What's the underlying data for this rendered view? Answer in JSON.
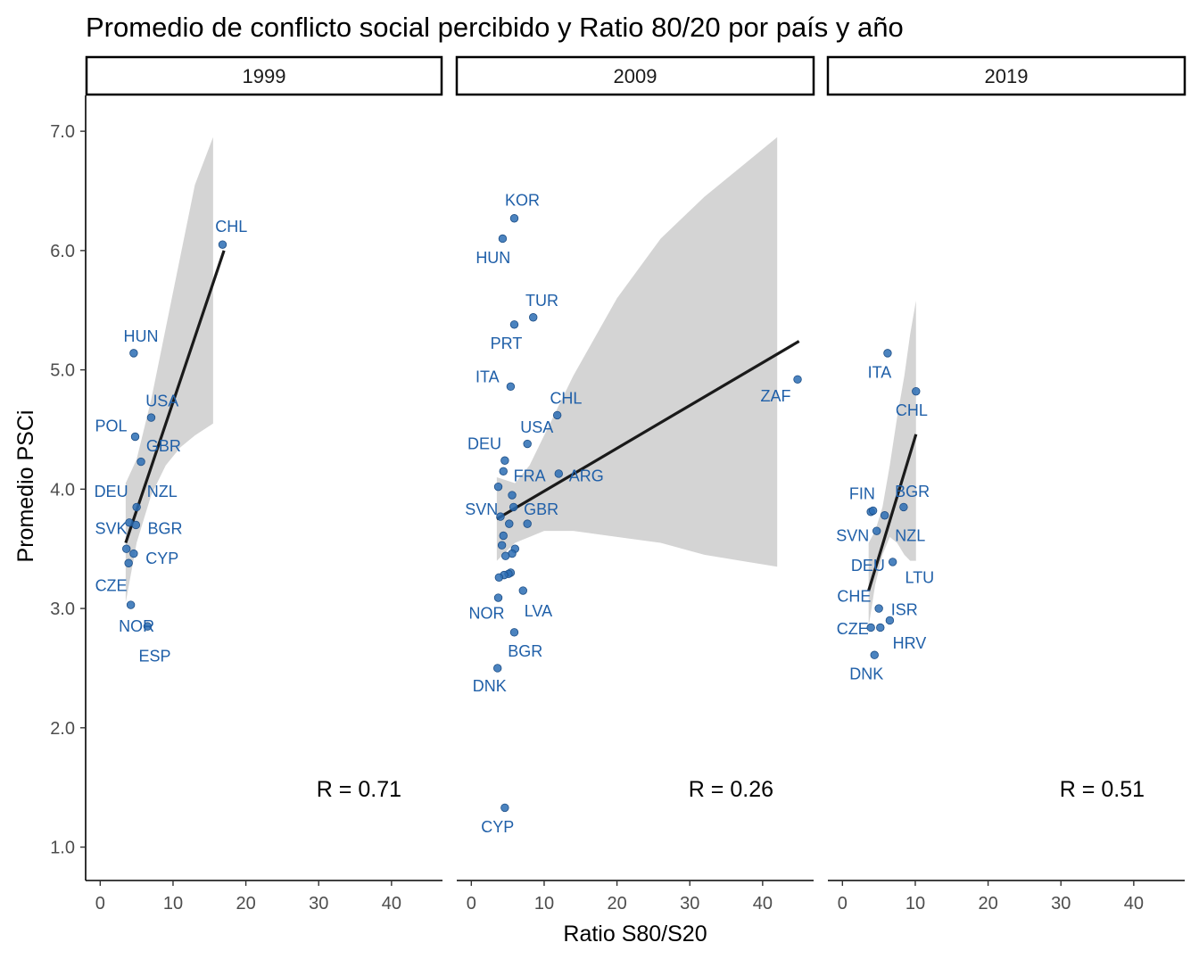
{
  "chart_data": {
    "type": "scatter",
    "title": "Promedio de conflicto social percibido y Ratio 80/20 por país y año",
    "xlabel": "Ratio S80/S20",
    "ylabel": "Promedio PSCi",
    "xlim": [
      -2,
      47
    ],
    "ylim": [
      0.72,
      7.3
    ],
    "x_ticks": [
      0,
      10,
      20,
      30,
      40
    ],
    "y_ticks": [
      1.0,
      2.0,
      3.0,
      4.0,
      5.0,
      6.0,
      7.0
    ],
    "x_tick_labels": [
      "0",
      "10",
      "20",
      "30",
      "40"
    ],
    "y_tick_labels": [
      "1.0",
      "2.0",
      "3.0",
      "4.0",
      "5.0",
      "6.0",
      "7.0"
    ],
    "grid": false,
    "point_color": "#2c6db4",
    "label_color": "#1f5fa8",
    "fit_color": "#1a1a1a",
    "band_color": "#d4d4d4",
    "panels": [
      {
        "facet": "1999",
        "r_label": "R = 0.71",
        "fit": {
          "x0": 3.5,
          "y0": 3.55,
          "x1": 17,
          "y1": 6.0
        },
        "band": [
          {
            "x": 3.5,
            "lo": 3.05,
            "hi": 4.05
          },
          {
            "x": 5,
            "lo": 3.55,
            "hi": 4.25
          },
          {
            "x": 7,
            "lo": 3.95,
            "hi": 4.75
          },
          {
            "x": 9,
            "lo": 4.2,
            "hi": 5.35
          },
          {
            "x": 11,
            "lo": 4.35,
            "hi": 5.95
          },
          {
            "x": 13,
            "lo": 4.45,
            "hi": 6.55
          },
          {
            "x": 15.5,
            "lo": 4.55,
            "hi": 6.95
          }
        ],
        "points": [
          {
            "x": 16.8,
            "y": 6.05
          },
          {
            "x": 4.6,
            "y": 5.14
          },
          {
            "x": 7.0,
            "y": 4.6
          },
          {
            "x": 4.8,
            "y": 4.44
          },
          {
            "x": 5.6,
            "y": 4.23
          },
          {
            "x": 5.0,
            "y": 3.85
          },
          {
            "x": 4.0,
            "y": 3.72
          },
          {
            "x": 4.9,
            "y": 3.7
          },
          {
            "x": 3.6,
            "y": 3.5
          },
          {
            "x": 4.6,
            "y": 3.46
          },
          {
            "x": 3.9,
            "y": 3.38
          },
          {
            "x": 4.2,
            "y": 3.03
          },
          {
            "x": 6.5,
            "y": 2.85
          }
        ],
        "labels": [
          {
            "text": "CHL",
            "x": 18,
            "y": 6.2
          },
          {
            "text": "HUN",
            "x": 5.6,
            "y": 5.28
          },
          {
            "text": "USA",
            "x": 8.5,
            "y": 4.74
          },
          {
            "text": "POL",
            "x": 1.5,
            "y": 4.53
          },
          {
            "text": "GBR",
            "x": 8.7,
            "y": 4.36
          },
          {
            "text": "DEU",
            "x": 1.5,
            "y": 3.98
          },
          {
            "text": "NZL",
            "x": 8.5,
            "y": 3.98
          },
          {
            "text": "SVK",
            "x": 1.5,
            "y": 3.67
          },
          {
            "text": "BGR",
            "x": 8.9,
            "y": 3.67
          },
          {
            "text": "CYP",
            "x": 8.5,
            "y": 3.42
          },
          {
            "text": "CZE",
            "x": 1.5,
            "y": 3.19
          },
          {
            "text": "NOR",
            "x": 5.0,
            "y": 2.85
          },
          {
            "text": "ESP",
            "x": 7.5,
            "y": 2.6
          }
        ]
      },
      {
        "facet": "2009",
        "r_label": "R = 0.26",
        "fit": {
          "x0": 3.5,
          "y0": 3.75,
          "x1": 45,
          "y1": 5.24
        },
        "band": [
          {
            "x": 3.5,
            "lo": 3.4,
            "hi": 4.1
          },
          {
            "x": 6,
            "lo": 3.55,
            "hi": 4.05
          },
          {
            "x": 8,
            "lo": 3.6,
            "hi": 4.2
          },
          {
            "x": 10,
            "lo": 3.65,
            "hi": 4.45
          },
          {
            "x": 14,
            "lo": 3.65,
            "hi": 4.95
          },
          {
            "x": 20,
            "lo": 3.6,
            "hi": 5.6
          },
          {
            "x": 26,
            "lo": 3.55,
            "hi": 6.1
          },
          {
            "x": 32,
            "lo": 3.45,
            "hi": 6.45
          },
          {
            "x": 37,
            "lo": 3.4,
            "hi": 6.7
          },
          {
            "x": 42,
            "lo": 3.35,
            "hi": 6.95
          }
        ],
        "points": [
          {
            "x": 5.9,
            "y": 6.27
          },
          {
            "x": 4.3,
            "y": 6.1
          },
          {
            "x": 8.5,
            "y": 5.44
          },
          {
            "x": 5.9,
            "y": 5.38
          },
          {
            "x": 5.4,
            "y": 4.86
          },
          {
            "x": 11.8,
            "y": 4.62
          },
          {
            "x": 7.7,
            "y": 4.38
          },
          {
            "x": 4.6,
            "y": 4.24
          },
          {
            "x": 4.4,
            "y": 4.15
          },
          {
            "x": 12.0,
            "y": 4.13
          },
          {
            "x": 3.7,
            "y": 4.02
          },
          {
            "x": 5.6,
            "y": 3.95
          },
          {
            "x": 5.8,
            "y": 3.85
          },
          {
            "x": 4.0,
            "y": 3.77
          },
          {
            "x": 5.2,
            "y": 3.71
          },
          {
            "x": 7.7,
            "y": 3.71
          },
          {
            "x": 4.4,
            "y": 3.61
          },
          {
            "x": 4.2,
            "y": 3.53
          },
          {
            "x": 6.0,
            "y": 3.5
          },
          {
            "x": 5.6,
            "y": 3.46
          },
          {
            "x": 4.7,
            "y": 3.44
          },
          {
            "x": 5.4,
            "y": 3.3
          },
          {
            "x": 5.1,
            "y": 3.29
          },
          {
            "x": 4.5,
            "y": 3.28
          },
          {
            "x": 3.8,
            "y": 3.26
          },
          {
            "x": 7.1,
            "y": 3.15
          },
          {
            "x": 3.7,
            "y": 3.09
          },
          {
            "x": 5.9,
            "y": 2.8
          },
          {
            "x": 3.6,
            "y": 2.5
          },
          {
            "x": 44.8,
            "y": 4.92
          },
          {
            "x": 4.6,
            "y": 1.33
          }
        ],
        "labels": [
          {
            "text": "KOR",
            "x": 7.0,
            "y": 6.42
          },
          {
            "text": "HUN",
            "x": 3.0,
            "y": 5.94
          },
          {
            "text": "TUR",
            "x": 9.7,
            "y": 5.58
          },
          {
            "text": "PRT",
            "x": 4.8,
            "y": 5.22
          },
          {
            "text": "ITA",
            "x": 2.2,
            "y": 4.94
          },
          {
            "text": "CHL",
            "x": 13.0,
            "y": 4.76
          },
          {
            "text": "USA",
            "x": 9.0,
            "y": 4.52
          },
          {
            "text": "DEU",
            "x": 1.8,
            "y": 4.38
          },
          {
            "text": "FRA",
            "x": 8.0,
            "y": 4.11
          },
          {
            "text": "ARG",
            "x": 15.8,
            "y": 4.11
          },
          {
            "text": "SVN",
            "x": 1.4,
            "y": 3.83
          },
          {
            "text": "GBR",
            "x": 9.6,
            "y": 3.83
          },
          {
            "text": "NOR",
            "x": 2.1,
            "y": 2.96
          },
          {
            "text": "LVA",
            "x": 9.2,
            "y": 2.98
          },
          {
            "text": "BGR",
            "x": 7.4,
            "y": 2.64
          },
          {
            "text": "DNK",
            "x": 2.5,
            "y": 2.35
          },
          {
            "text": "ZAF",
            "x": 41.8,
            "y": 4.78
          },
          {
            "text": "CYP",
            "x": 3.6,
            "y": 1.17
          }
        ]
      },
      {
        "facet": "2019",
        "r_label": "R = 0.51",
        "fit": {
          "x0": 3.6,
          "y0": 3.15,
          "x1": 10.1,
          "y1": 4.46
        },
        "band": [
          {
            "x": 3.6,
            "lo": 2.85,
            "hi": 3.55
          },
          {
            "x": 4.5,
            "lo": 3.2,
            "hi": 3.65
          },
          {
            "x": 5.5,
            "lo": 3.45,
            "hi": 3.85
          },
          {
            "x": 6.5,
            "lo": 3.6,
            "hi": 4.2
          },
          {
            "x": 7.5,
            "lo": 3.55,
            "hi": 4.6
          },
          {
            "x": 8.5,
            "lo": 3.45,
            "hi": 4.95
          },
          {
            "x": 9.3,
            "lo": 3.4,
            "hi": 5.3
          },
          {
            "x": 10.1,
            "lo": 3.4,
            "hi": 5.58
          }
        ],
        "points": [
          {
            "x": 6.2,
            "y": 5.14
          },
          {
            "x": 10.1,
            "y": 4.82
          },
          {
            "x": 3.9,
            "y": 3.81
          },
          {
            "x": 4.2,
            "y": 3.82
          },
          {
            "x": 5.8,
            "y": 3.78
          },
          {
            "x": 8.4,
            "y": 3.85
          },
          {
            "x": 4.7,
            "y": 3.65
          },
          {
            "x": 6.9,
            "y": 3.39
          },
          {
            "x": 5.0,
            "y": 3.0
          },
          {
            "x": 6.5,
            "y": 2.9
          },
          {
            "x": 3.9,
            "y": 2.84
          },
          {
            "x": 5.2,
            "y": 2.84
          },
          {
            "x": 4.4,
            "y": 2.61
          }
        ],
        "labels": [
          {
            "text": "ITA",
            "x": 5.1,
            "y": 4.98
          },
          {
            "text": "CHL",
            "x": 9.5,
            "y": 4.66
          },
          {
            "text": "FIN",
            "x": 2.7,
            "y": 3.96
          },
          {
            "text": "BGR",
            "x": 9.6,
            "y": 3.98
          },
          {
            "text": "SVN",
            "x": 1.4,
            "y": 3.61
          },
          {
            "text": "NZL",
            "x": 9.3,
            "y": 3.61
          },
          {
            "text": "DEU",
            "x": 3.5,
            "y": 3.36
          },
          {
            "text": "LTU",
            "x": 10.6,
            "y": 3.26
          },
          {
            "text": "CHE",
            "x": 1.6,
            "y": 3.1
          },
          {
            "text": "ISR",
            "x": 8.5,
            "y": 2.99
          },
          {
            "text": "CZE",
            "x": 1.4,
            "y": 2.83
          },
          {
            "text": "HRV",
            "x": 9.2,
            "y": 2.71
          },
          {
            "text": "DNK",
            "x": 3.3,
            "y": 2.45
          }
        ]
      }
    ]
  }
}
